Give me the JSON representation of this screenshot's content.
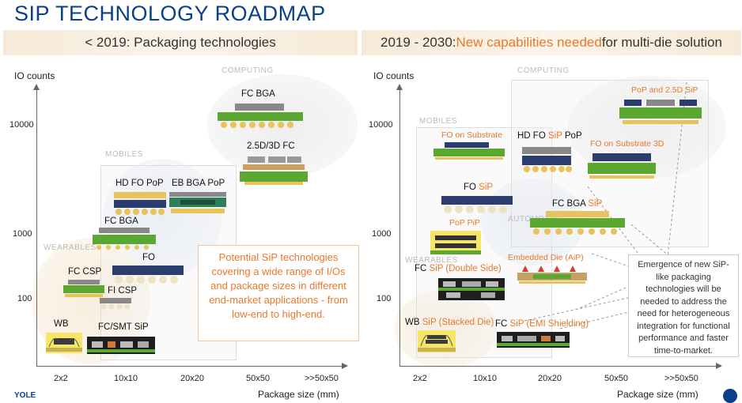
{
  "title": "SIP TECHNOLOGY ROADMAP",
  "left": {
    "banner": "< 2019: Packaging technologies",
    "y_axis_label": "IO counts",
    "x_axis_label": "Package size (mm)",
    "y_ticks": [
      "10000",
      "1000",
      "100"
    ],
    "x_ticks": [
      "2x2",
      "10x10",
      "20x20",
      "50x50",
      ">>50x50"
    ],
    "segments": [
      "COMPUTING",
      "MOBILES",
      "WEARABLES"
    ],
    "packages": [
      "FC BGA",
      "2.5D/3D FC",
      "HD FO PoP",
      "EB BGA PoP",
      "FC BGA",
      "FO",
      "FC CSP",
      "FI CSP",
      "WB",
      "FC/SMT SiP"
    ],
    "callout": "Potential SiP technologies covering a wide range of I/Os and package sizes in different end-market applications - from low-end to high-end."
  },
  "right": {
    "banner_prefix": "2019 - 2030: ",
    "banner_highlight": "New capabilities needed",
    "banner_suffix": " for multi-die solution",
    "y_axis_label": "IO counts",
    "x_axis_label": "Package size (mm)",
    "y_ticks": [
      "10000",
      "1000",
      "100"
    ],
    "x_ticks": [
      "2x2",
      "10x10",
      "20x20",
      "50x50",
      ">>50x50"
    ],
    "segments": [
      "COMPUTING",
      "MOBILES",
      "AUTOMOTIVE",
      "WEARABLES"
    ],
    "pkg_pop25d": "PoP and 2.5D SiP",
    "pkg_fo_sub": "FO on Substrate",
    "pkg_hdfo_a": "HD FO ",
    "pkg_hdfo_b": "SiP",
    "pkg_hdfo_c": " PoP",
    "pkg_fo_sub3d": "FO on Substrate 3D",
    "pkg_fosip_a": "FO ",
    "pkg_fosip_b": "SiP",
    "pkg_fcbga_a": "FC BGA ",
    "pkg_fcbga_b": "SiP",
    "pkg_poppip": "PoP PiP",
    "pkg_embedded": "Embedded Die (AiP)",
    "pkg_fcds_a": "FC ",
    "pkg_fcds_b": "SiP (Double Side)",
    "pkg_wb_a": "WB ",
    "pkg_wb_b": "SiP (Stacked Die)",
    "pkg_fcemi_a": "FC ",
    "pkg_fcemi_b": "SiP (EMI Shielding)",
    "callout": "Emergence of new SiP-like packaging technologies will be needed to address the need for heterogeneous integration for functional performance and faster time-to-market."
  },
  "footer": "YOLE",
  "colors": {
    "title": "#0b3f8a",
    "accent": "#e8792a",
    "pcb_green": "#5aa832",
    "bump_gold": "#e8c25a"
  }
}
